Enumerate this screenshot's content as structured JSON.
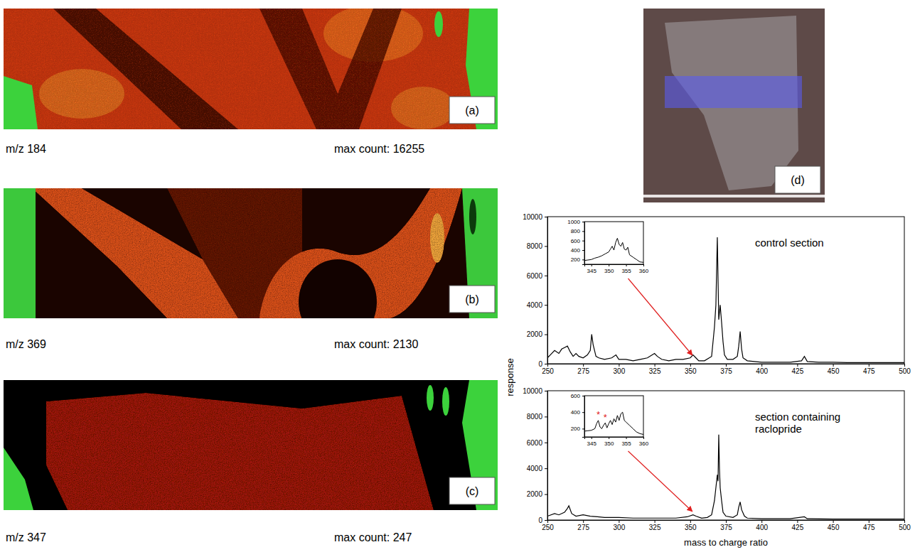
{
  "images": [
    {
      "label": "(a)",
      "caption": "m/z 184",
      "max_count": "max count: 16255"
    },
    {
      "label": "(b)",
      "caption": "m/z 369",
      "max_count": "max count: 2130"
    },
    {
      "label": "(c)",
      "caption": "m/z 347",
      "max_count": "max count: 247"
    },
    {
      "label": "(d)"
    }
  ],
  "chart_data": [
    {
      "type": "line",
      "color": "#000000",
      "ylabel": "response",
      "annotations": [
        {
          "text": "control section"
        }
      ],
      "xlim": [
        250,
        500
      ],
      "xticks": [
        250,
        275,
        300,
        325,
        350,
        375,
        400,
        425,
        450,
        475,
        500
      ],
      "ylim": [
        0,
        10000
      ],
      "yticks": [
        0,
        2000,
        4000,
        6000,
        8000,
        10000
      ],
      "x": [
        250,
        252,
        255,
        258,
        260,
        262,
        264,
        266,
        268,
        270,
        272,
        275,
        278,
        280,
        281,
        282,
        284,
        286,
        290,
        295,
        298,
        300,
        305,
        310,
        315,
        320,
        325,
        327,
        330,
        335,
        340,
        345,
        350,
        352,
        354,
        356,
        360,
        365,
        367,
        368,
        369,
        370,
        371,
        372,
        373,
        374,
        376,
        380,
        383,
        384,
        385,
        386,
        387,
        390,
        395,
        400,
        410,
        420,
        428,
        430,
        432,
        440,
        450,
        460,
        470,
        480,
        490,
        500
      ],
      "values": [
        400,
        600,
        900,
        700,
        1000,
        1100,
        1200,
        800,
        500,
        700,
        500,
        400,
        600,
        900,
        2000,
        1300,
        500,
        400,
        300,
        400,
        600,
        300,
        300,
        200,
        300,
        400,
        700,
        500,
        300,
        200,
        300,
        300,
        400,
        600,
        400,
        200,
        200,
        500,
        2500,
        4000,
        8600,
        3000,
        4000,
        2800,
        1500,
        600,
        300,
        300,
        500,
        1200,
        2200,
        1000,
        400,
        200,
        150,
        100,
        100,
        100,
        200,
        500,
        150,
        100,
        100,
        80,
        80,
        80,
        80,
        80
      ]
    },
    {
      "type": "line",
      "color": "#000000",
      "xlim": [
        343,
        360
      ],
      "xticks": [
        345,
        350,
        355,
        360
      ],
      "ylim": [
        100,
        1000
      ],
      "yticks": [
        200,
        400,
        600,
        800,
        1000
      ],
      "x": [
        343,
        344,
        345,
        346,
        347,
        348,
        349,
        350,
        350.5,
        351,
        351.5,
        352,
        352.5,
        353,
        353.5,
        354,
        354.5,
        355,
        355.5,
        356,
        357,
        358,
        359,
        360
      ],
      "values": [
        180,
        190,
        200,
        230,
        250,
        280,
        320,
        360,
        420,
        480,
        400,
        560,
        650,
        520,
        480,
        560,
        420,
        400,
        460,
        300,
        250,
        200,
        150,
        140
      ]
    },
    {
      "type": "line",
      "color": "#000000",
      "xlabel": "mass to charge ratio",
      "annotations": [
        {
          "text": "section containing raclopride"
        }
      ],
      "xlim": [
        250,
        500
      ],
      "xticks": [
        250,
        275,
        300,
        325,
        350,
        375,
        400,
        425,
        450,
        475,
        500
      ],
      "ylim": [
        0,
        10000
      ],
      "yticks": [
        0,
        2000,
        4000,
        6000,
        8000,
        10000
      ],
      "x": [
        250,
        255,
        258,
        262,
        264,
        265,
        267,
        270,
        275,
        280,
        285,
        290,
        300,
        310,
        320,
        330,
        340,
        348,
        352,
        354,
        358,
        362,
        365,
        367,
        368,
        369,
        369.5,
        370,
        370.5,
        371,
        372,
        373,
        375,
        380,
        383,
        384,
        385,
        386,
        388,
        390,
        400,
        420,
        430,
        432,
        450,
        475,
        500
      ],
      "values": [
        300,
        500,
        400,
        600,
        900,
        1100,
        500,
        300,
        400,
        300,
        250,
        200,
        200,
        150,
        150,
        150,
        150,
        250,
        400,
        300,
        150,
        200,
        400,
        1500,
        2500,
        3500,
        3000,
        6600,
        4000,
        2500,
        1500,
        600,
        300,
        200,
        400,
        1000,
        1400,
        800,
        300,
        150,
        100,
        100,
        250,
        100,
        80,
        80,
        80
      ]
    },
    {
      "type": "line",
      "color": "#000000",
      "annotations": [
        {
          "text": "*",
          "x": 347,
          "y": 330
        },
        {
          "text": "*",
          "x": 349,
          "y": 300
        }
      ],
      "xlim": [
        343,
        360
      ],
      "xticks": [
        345,
        350,
        355,
        360
      ],
      "ylim": [
        100,
        600
      ],
      "yticks": [
        200,
        400,
        600
      ],
      "x": [
        343,
        344,
        345,
        346,
        346.5,
        347,
        347.5,
        348,
        348.5,
        349,
        349.5,
        350,
        350.5,
        351,
        351.5,
        352,
        352.5,
        353,
        353.5,
        354,
        354.5,
        355,
        356,
        357,
        358,
        359,
        360
      ],
      "values": [
        170,
        175,
        180,
        200,
        260,
        300,
        220,
        200,
        240,
        270,
        210,
        260,
        300,
        250,
        320,
        280,
        360,
        300,
        380,
        400,
        300,
        280,
        240,
        200,
        160,
        140,
        130
      ]
    }
  ]
}
